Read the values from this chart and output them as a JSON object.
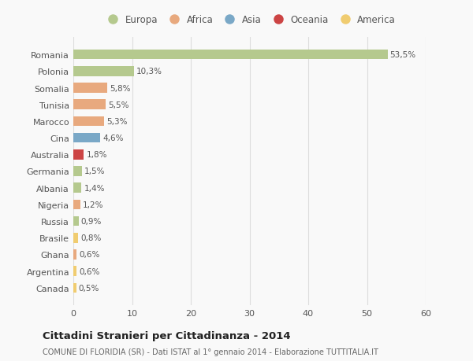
{
  "categories": [
    "Romania",
    "Polonia",
    "Somalia",
    "Tunisia",
    "Marocco",
    "Cina",
    "Australia",
    "Germania",
    "Albania",
    "Nigeria",
    "Russia",
    "Brasile",
    "Ghana",
    "Argentina",
    "Canada"
  ],
  "values": [
    53.5,
    10.3,
    5.8,
    5.5,
    5.3,
    4.6,
    1.8,
    1.5,
    1.4,
    1.2,
    0.9,
    0.8,
    0.6,
    0.6,
    0.5
  ],
  "labels": [
    "53,5%",
    "10,3%",
    "5,8%",
    "5,5%",
    "5,3%",
    "4,6%",
    "1,8%",
    "1,5%",
    "1,4%",
    "1,2%",
    "0,9%",
    "0,8%",
    "0,6%",
    "0,6%",
    "0,5%"
  ],
  "colors": [
    "#b5c98e",
    "#b5c98e",
    "#e8a97e",
    "#e8a97e",
    "#e8a97e",
    "#7aa8c7",
    "#cc4444",
    "#b5c98e",
    "#b5c98e",
    "#e8a97e",
    "#b5c98e",
    "#f0cc70",
    "#e8a97e",
    "#f0cc70",
    "#f0cc70"
  ],
  "legend": [
    {
      "label": "Europa",
      "color": "#b5c98e"
    },
    {
      "label": "Africa",
      "color": "#e8a97e"
    },
    {
      "label": "Asia",
      "color": "#7aa8c7"
    },
    {
      "label": "Oceania",
      "color": "#cc4444"
    },
    {
      "label": "America",
      "color": "#f0cc70"
    }
  ],
  "title": "Cittadini Stranieri per Cittadinanza - 2014",
  "subtitle": "COMUNE DI FLORIDIA (SR) - Dati ISTAT al 1° gennaio 2014 - Elaborazione TUTTITALIA.IT",
  "xlim": [
    0,
    60
  ],
  "xticks": [
    0,
    10,
    20,
    30,
    40,
    50,
    60
  ],
  "background_color": "#f9f9f9",
  "grid_color": "#dddddd",
  "bar_height": 0.6
}
